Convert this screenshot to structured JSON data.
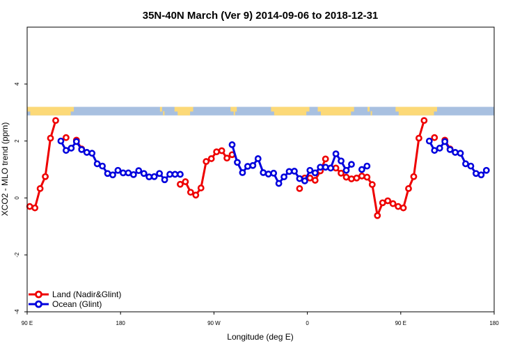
{
  "chart_data": {
    "type": "line",
    "title": "35N-40N March (Ver 9)   2014-09-06 to 2018-12-31",
    "xlabel": "Longitude (deg E)",
    "ylabel": "XCO2 - MLO trend (ppm)",
    "xlim": [
      90,
      540
    ],
    "ylim": [
      -4,
      6
    ],
    "x_ticks": [
      {
        "value": 90,
        "label": "90 E"
      },
      {
        "value": 180,
        "label": "180"
      },
      {
        "value": 270,
        "label": "90 W"
      },
      {
        "value": 360,
        "label": "0"
      },
      {
        "value": 450,
        "label": "90 E"
      },
      {
        "value": 540,
        "label": "180"
      }
    ],
    "y_ticks": [
      {
        "value": -4,
        "label": "-4"
      },
      {
        "value": -2,
        "label": "-2"
      },
      {
        "value": 0,
        "label": "0"
      },
      {
        "value": 2,
        "label": "2"
      },
      {
        "value": 4,
        "label": "4"
      }
    ],
    "legend_position": "bottom-left",
    "map_strip": {
      "y_range": [
        2.9,
        3.2
      ],
      "land_color": "#fcd978",
      "ocean_color": "#a8c0e0"
    },
    "series": [
      {
        "name": "Land (Nadir&Glint)",
        "color": "#ee0000",
        "segments": [
          [
            [
              92.5,
              -0.3
            ],
            [
              97.5,
              -0.35
            ],
            [
              102.5,
              0.33
            ],
            [
              107.5,
              0.75
            ],
            [
              112.5,
              2.1
            ],
            [
              117.5,
              2.72
            ]
          ],
          [
            [
              127.5,
              2.12
            ]
          ],
          [
            [
              137.5,
              2.03
            ],
            [
              142.5,
              1.72
            ]
          ],
          [
            [
              237.5,
              0.48
            ],
            [
              242.5,
              0.57
            ],
            [
              247.5,
              0.2
            ],
            [
              252.5,
              0.1
            ],
            [
              257.5,
              0.35
            ],
            [
              262.5,
              1.28
            ],
            [
              267.5,
              1.38
            ],
            [
              272.5,
              1.62
            ],
            [
              277.5,
              1.66
            ],
            [
              282.5,
              1.4
            ],
            [
              287.5,
              1.52
            ]
          ],
          [
            [
              352.5,
              0.33
            ]
          ],
          [
            [
              357.5,
              0.7
            ],
            [
              362.5,
              0.7
            ],
            [
              367.5,
              0.62
            ],
            [
              372.5,
              0.95
            ],
            [
              377.5,
              1.37
            ]
          ],
          [
            [
              387.5,
              1.05
            ],
            [
              392.5,
              0.87
            ],
            [
              397.5,
              0.73
            ],
            [
              402.5,
              0.67
            ],
            [
              407.5,
              0.7
            ],
            [
              412.5,
              0.77
            ],
            [
              417.5,
              0.73
            ],
            [
              422.5,
              0.47
            ],
            [
              427.5,
              -0.62
            ],
            [
              432.5,
              -0.17
            ],
            [
              437.5,
              -0.1
            ],
            [
              442.5,
              -0.2
            ],
            [
              447.5,
              -0.3
            ],
            [
              452.5,
              -0.35
            ],
            [
              457.5,
              0.33
            ],
            [
              462.5,
              0.75
            ],
            [
              467.5,
              2.1
            ],
            [
              472.5,
              2.72
            ]
          ],
          [
            [
              482.5,
              2.12
            ]
          ],
          [
            [
              492.5,
              2.03
            ],
            [
              497.5,
              1.72
            ]
          ]
        ]
      },
      {
        "name": "Ocean (Glint)",
        "color": "#0000dd",
        "segments": [
          [
            [
              122.5,
              2.0
            ],
            [
              127.5,
              1.67
            ],
            [
              132.5,
              1.75
            ],
            [
              137.5,
              1.98
            ],
            [
              142.5,
              1.7
            ],
            [
              147.5,
              1.6
            ],
            [
              152.5,
              1.57
            ],
            [
              157.5,
              1.2
            ],
            [
              162.5,
              1.12
            ],
            [
              167.5,
              0.86
            ],
            [
              172.5,
              0.81
            ],
            [
              177.5,
              0.97
            ],
            [
              182.5,
              0.88
            ],
            [
              187.5,
              0.88
            ],
            [
              192.5,
              0.82
            ],
            [
              197.5,
              0.96
            ],
            [
              202.5,
              0.86
            ],
            [
              207.5,
              0.74
            ],
            [
              212.5,
              0.75
            ],
            [
              217.5,
              0.86
            ],
            [
              222.5,
              0.64
            ],
            [
              227.5,
              0.83
            ],
            [
              232.5,
              0.83
            ],
            [
              237.5,
              0.83
            ]
          ],
          [
            [
              287.5,
              1.87
            ],
            [
              292.5,
              1.25
            ],
            [
              297.5,
              0.89
            ],
            [
              302.5,
              1.11
            ],
            [
              307.5,
              1.14
            ],
            [
              312.5,
              1.38
            ],
            [
              317.5,
              0.89
            ],
            [
              322.5,
              0.84
            ],
            [
              327.5,
              0.87
            ],
            [
              332.5,
              0.51
            ],
            [
              337.5,
              0.74
            ],
            [
              342.5,
              0.93
            ],
            [
              347.5,
              0.94
            ],
            [
              352.5,
              0.68
            ],
            [
              357.5,
              0.6
            ],
            [
              362.5,
              0.97
            ],
            [
              367.5,
              0.88
            ],
            [
              372.5,
              1.08
            ],
            [
              377.5,
              1.08
            ],
            [
              382.5,
              1.05
            ],
            [
              387.5,
              1.55
            ],
            [
              392.5,
              1.3
            ],
            [
              397.5,
              0.97
            ],
            [
              402.5,
              1.18
            ]
          ],
          [
            [
              412.5,
              1.0
            ],
            [
              417.5,
              1.12
            ]
          ],
          [
            [
              477.5,
              2.0
            ],
            [
              482.5,
              1.67
            ],
            [
              487.5,
              1.75
            ],
            [
              492.5,
              1.98
            ],
            [
              497.5,
              1.7
            ],
            [
              502.5,
              1.6
            ],
            [
              507.5,
              1.57
            ],
            [
              512.5,
              1.2
            ],
            [
              517.5,
              1.12
            ],
            [
              522.5,
              0.86
            ],
            [
              527.5,
              0.81
            ],
            [
              532.5,
              0.97
            ]
          ]
        ]
      }
    ]
  }
}
